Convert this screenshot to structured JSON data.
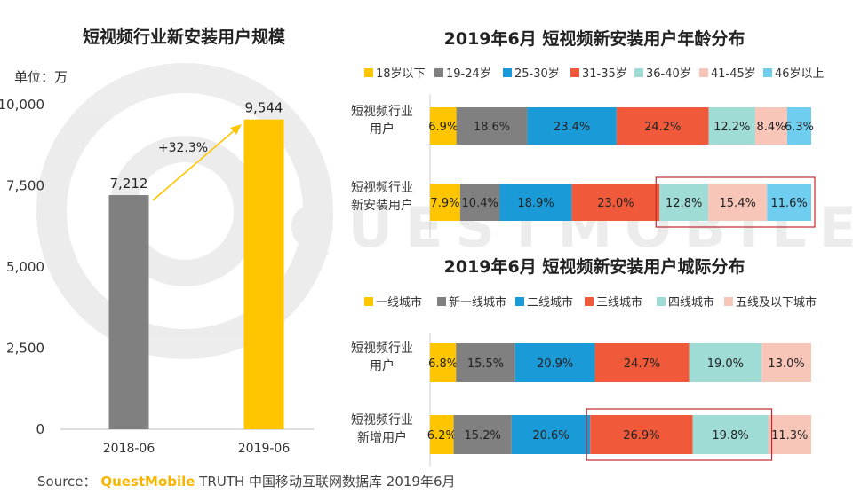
{
  "charts": {
    "left": {
      "title": "短视频行业新安装用户规模",
      "unit_label": "单位：万",
      "growth_label": "+32.3%",
      "bar_colors": [
        "#808080",
        "#ffc600"
      ]
    },
    "age": {
      "title": "2019年6月 短视频新安装用户年龄分布",
      "colors": [
        "#ffc600",
        "#808080",
        "#1a9ad6",
        "#f05a3a",
        "#9fdcd6",
        "#f8c6b8",
        "#6fcef0"
      ]
    },
    "city": {
      "title": "2019年6月 短视频新安装用户城际分布",
      "colors": [
        "#ffc600",
        "#808080",
        "#1a9ad6",
        "#f05a3a",
        "#9fdcd6",
        "#f8c6b8"
      ]
    }
  },
  "watermark": "QUESTMOBILE",
  "source": {
    "prefix": "Source：",
    "brand": "QuestMobile",
    "rest": "TRUTH 中国移动互联网数据库 2019年6月"
  },
  "chart_data": [
    {
      "type": "bar",
      "title": "短视频行业新安装用户规模",
      "categories": [
        "2018-06",
        "2019-06"
      ],
      "values": [
        7212,
        9544
      ],
      "value_labels": [
        "7,212",
        "9,544"
      ],
      "yticks": [
        "0",
        "2,500",
        "5,000",
        "7,500",
        "10,000"
      ],
      "ylim": [
        0,
        10000
      ],
      "ylabel": "单位：万",
      "annotation": "+32.3%"
    },
    {
      "type": "bar",
      "stacked": "100%",
      "orientation": "horizontal",
      "title": "2019年6月 短视频新安装用户年龄分布",
      "legend_position": "top",
      "categories": [
        "短视频行业用户",
        "短视频行业新安装用户"
      ],
      "series": [
        {
          "name": "18岁以下",
          "values": [
            6.9,
            7.9
          ],
          "labels": [
            "6.9%",
            "7.9%"
          ]
        },
        {
          "name": "19-24岁",
          "values": [
            18.6,
            10.4
          ],
          "labels": [
            "18.6%",
            "10.4%"
          ]
        },
        {
          "name": "25-30岁",
          "values": [
            23.4,
            18.9
          ],
          "labels": [
            "23.4%",
            "18.9%"
          ]
        },
        {
          "name": "31-35岁",
          "values": [
            24.2,
            23.0
          ],
          "labels": [
            "24.2%",
            "23.0%"
          ]
        },
        {
          "name": "36-40岁",
          "values": [
            12.2,
            12.8
          ],
          "labels": [
            "12.2%",
            "12.8%"
          ]
        },
        {
          "name": "41-45岁",
          "values": [
            8.4,
            15.4
          ],
          "labels": [
            "8.4%",
            "15.4%"
          ]
        },
        {
          "name": "46岁以上",
          "values": [
            6.3,
            11.6
          ],
          "labels": [
            "6.3%",
            "11.6%"
          ]
        }
      ],
      "highlight": {
        "row": 1,
        "from_series": 4,
        "to_series": 6
      }
    },
    {
      "type": "bar",
      "stacked": "100%",
      "orientation": "horizontal",
      "title": "2019年6月 短视频新安装用户城际分布",
      "legend_position": "top",
      "categories": [
        "短视频行业用户",
        "短视频行业新增用户"
      ],
      "series": [
        {
          "name": "一线城市",
          "values": [
            6.8,
            6.2
          ],
          "labels": [
            "6.8%",
            "6.2%"
          ]
        },
        {
          "name": "新一线城市",
          "values": [
            15.5,
            15.2
          ],
          "labels": [
            "15.5%",
            "15.2%"
          ]
        },
        {
          "name": "二线城市",
          "values": [
            20.9,
            20.6
          ],
          "labels": [
            "20.9%",
            "20.6%"
          ]
        },
        {
          "name": "三线城市",
          "values": [
            24.7,
            26.9
          ],
          "labels": [
            "24.7%",
            "26.9%"
          ]
        },
        {
          "name": "四线城市",
          "values": [
            19.0,
            19.8
          ],
          "labels": [
            "19.0%",
            "19.8%"
          ]
        },
        {
          "name": "五线及以下城市",
          "values": [
            13.0,
            11.3
          ],
          "labels": [
            "13.0%",
            "11.3%"
          ]
        }
      ],
      "highlight": {
        "row": 1,
        "from_series": 3,
        "to_series": 4
      }
    }
  ]
}
